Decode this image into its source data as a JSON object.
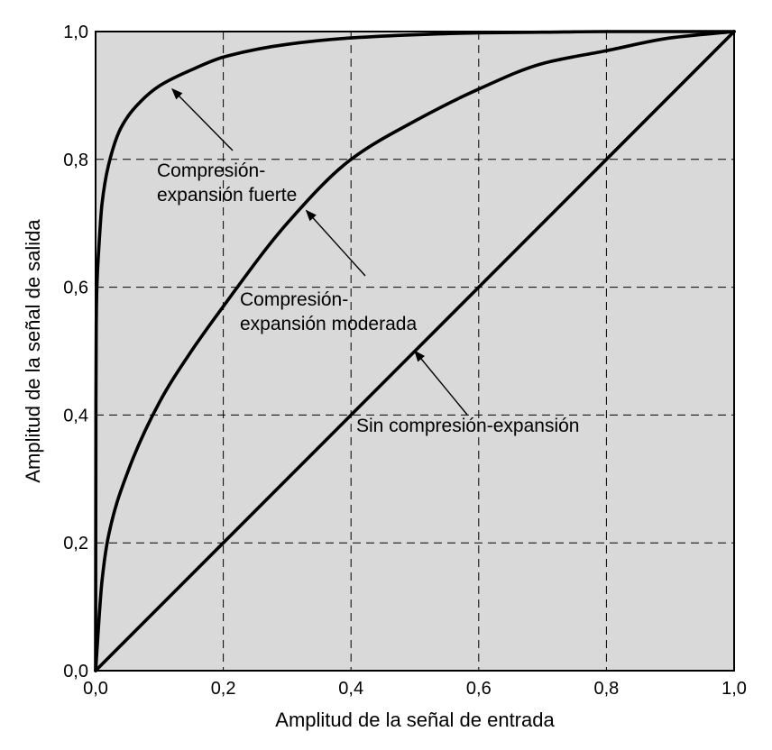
{
  "chart_data": {
    "type": "line",
    "title": "",
    "xlabel": "Amplitud de la señal de entrada",
    "ylabel": "Amplitud de la señal de salida",
    "xlim": [
      0,
      1
    ],
    "ylim": [
      0,
      1
    ],
    "grid": true,
    "background": "#d9d9d9",
    "x_ticks": [
      "0,0",
      "0,2",
      "0,4",
      "0,6",
      "0,8",
      "1,0"
    ],
    "y_ticks": [
      "0,0",
      "0,2",
      "0,4",
      "0,6",
      "0,8",
      "1,0"
    ],
    "series": [
      {
        "name": "Sin compresión-expansión",
        "x": [
          0.0,
          0.2,
          0.4,
          0.6,
          0.8,
          1.0
        ],
        "y": [
          0.0,
          0.2,
          0.4,
          0.6,
          0.8,
          1.0
        ]
      },
      {
        "name": "Compresión-expansión moderada",
        "x": [
          0.0,
          0.01,
          0.02,
          0.05,
          0.1,
          0.15,
          0.2,
          0.3,
          0.4,
          0.5,
          0.6,
          0.7,
          0.8,
          0.9,
          1.0
        ],
        "y": [
          0.0,
          0.14,
          0.21,
          0.31,
          0.42,
          0.5,
          0.57,
          0.7,
          0.8,
          0.86,
          0.91,
          0.95,
          0.97,
          0.99,
          1.0
        ]
      },
      {
        "name": "Compresión-expansión fuerte",
        "x": [
          0.0,
          0.0005,
          0.001,
          0.002,
          0.005,
          0.01,
          0.02,
          0.04,
          0.07,
          0.1,
          0.15,
          0.2,
          0.3,
          0.4,
          0.5,
          0.6,
          0.7,
          0.8,
          0.9,
          1.0
        ],
        "y": [
          0.0,
          0.42,
          0.54,
          0.6,
          0.66,
          0.73,
          0.79,
          0.85,
          0.89,
          0.915,
          0.94,
          0.96,
          0.98,
          0.99,
          0.995,
          0.998,
          0.999,
          1.0,
          1.0,
          1.0
        ]
      }
    ],
    "annotations": [
      {
        "lines": [
          "Compresión-",
          "expansión fuerte"
        ],
        "target": [
          0.12,
          0.91
        ]
      },
      {
        "lines": [
          "Compresión-",
          "expansión moderada"
        ],
        "target": [
          0.33,
          0.72
        ]
      },
      {
        "lines": [
          "Sin compresión-expansión"
        ],
        "target": [
          0.5,
          0.5
        ]
      }
    ]
  }
}
